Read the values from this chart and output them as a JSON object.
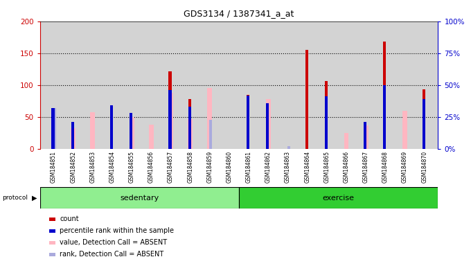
{
  "title": "GDS3134 / 1387341_a_at",
  "samples": [
    "GSM184851",
    "GSM184852",
    "GSM184853",
    "GSM184854",
    "GSM184855",
    "GSM184856",
    "GSM184857",
    "GSM184858",
    "GSM184859",
    "GSM184860",
    "GSM184861",
    "GSM184862",
    "GSM184863",
    "GSM184864",
    "GSM184865",
    "GSM184866",
    "GSM184867",
    "GSM184868",
    "GSM184869",
    "GSM184870"
  ],
  "count": [
    0,
    0,
    0,
    68,
    0,
    0,
    122,
    78,
    0,
    0,
    85,
    0,
    0,
    155,
    106,
    0,
    0,
    168,
    0,
    93
  ],
  "percentile_rank": [
    32,
    21,
    0,
    34,
    28,
    0,
    46,
    33,
    0,
    0,
    42,
    36,
    0,
    0,
    41,
    0,
    21,
    50,
    0,
    39
  ],
  "absent_value": [
    63,
    33,
    58,
    0,
    50,
    38,
    88,
    47,
    95,
    0,
    0,
    78,
    0,
    0,
    0,
    25,
    37,
    0,
    60,
    0
  ],
  "absent_rank": [
    32,
    0,
    0,
    0,
    0,
    0,
    0,
    0,
    23,
    0,
    0,
    0,
    2,
    0,
    0,
    0,
    0,
    0,
    0,
    0
  ],
  "protocol_groups": [
    {
      "label": "sedentary",
      "start": 0,
      "end": 10,
      "color": "#90EE90"
    },
    {
      "label": "exercise",
      "start": 10,
      "end": 20,
      "color": "#32CD32"
    }
  ],
  "ylim_left": [
    0,
    200
  ],
  "ylim_right": [
    0,
    100
  ],
  "yticks_left": [
    0,
    50,
    100,
    150,
    200
  ],
  "yticks_right": [
    0,
    25,
    50,
    75,
    100
  ],
  "ytick_labels_right": [
    "0%",
    "25%",
    "50%",
    "75%",
    "100%"
  ],
  "bg_color": "#d3d3d3",
  "bar_width": 0.12,
  "count_color": "#cc0000",
  "rank_color": "#0000cc",
  "absent_value_color": "#FFB6C1",
  "absent_rank_color": "#aaaadd",
  "left_tick_color": "#cc0000",
  "right_tick_color": "#0000cc",
  "plot_bg": "#e8e8e8"
}
